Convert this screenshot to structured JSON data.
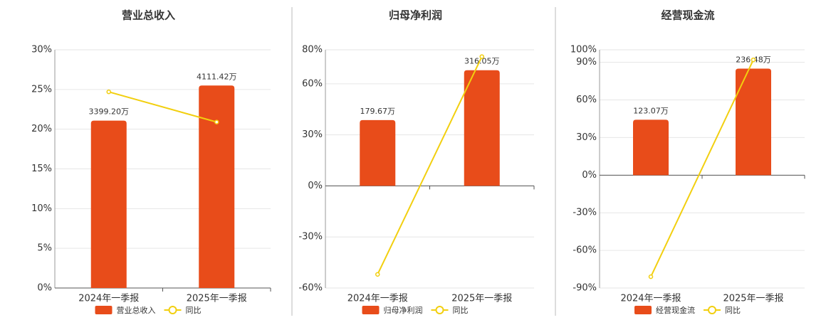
{
  "chart_data": [
    {
      "type": "bar",
      "title": "营业总收入",
      "categories": [
        "2024年一季报",
        "2025年一季报"
      ],
      "series": [
        {
          "name": "营业总收入",
          "type": "bar",
          "color": "#e84c1a",
          "values": [
            3399.2,
            4111.42
          ],
          "value_labels": [
            "3399.20万",
            "4111.42万"
          ]
        },
        {
          "name": "同比",
          "type": "line",
          "color": "#f2cf0f",
          "values": [
            24.7,
            20.9
          ]
        }
      ],
      "ylim": [
        0,
        30
      ],
      "yticks": [
        {
          "value": 0,
          "label": "0%"
        },
        {
          "value": 5,
          "label": "5%"
        },
        {
          "value": 10,
          "label": "10%"
        },
        {
          "value": 15,
          "label": "15%"
        },
        {
          "value": 20,
          "label": "20%"
        },
        {
          "value": 25,
          "label": "25%"
        },
        {
          "value": 30,
          "label": "30%"
        }
      ],
      "grid": true
    },
    {
      "type": "bar",
      "title": "归母净利润",
      "categories": [
        "2024年一季报",
        "2025年一季报"
      ],
      "series": [
        {
          "name": "归母净利润",
          "type": "bar",
          "color": "#e84c1a",
          "values": [
            179.67,
            316.05
          ],
          "value_labels": [
            "179.67万",
            "316.05万"
          ]
        },
        {
          "name": "同比",
          "type": "line",
          "color": "#f2cf0f",
          "values": [
            -52,
            76
          ]
        }
      ],
      "ylim": [
        -60,
        80
      ],
      "yticks": [
        {
          "value": -60,
          "label": "-60%"
        },
        {
          "value": -30,
          "label": "-30%"
        },
        {
          "value": 0,
          "label": "0%"
        },
        {
          "value": 30,
          "label": "30%"
        },
        {
          "value": 60,
          "label": "60%"
        },
        {
          "value": 80,
          "label": "80%"
        }
      ],
      "grid": true
    },
    {
      "type": "bar",
      "title": "经营现金流",
      "categories": [
        "2024年一季报",
        "2025年一季报"
      ],
      "series": [
        {
          "name": "经营现金流",
          "type": "bar",
          "color": "#e84c1a",
          "values": [
            123.07,
            236.48
          ],
          "value_labels": [
            "123.07万",
            "236.48万"
          ]
        },
        {
          "name": "同比",
          "type": "line",
          "color": "#f2cf0f",
          "values": [
            -81,
            92
          ]
        }
      ],
      "ylim": [
        -90,
        100
      ],
      "yticks": [
        {
          "value": -90,
          "label": "-90%"
        },
        {
          "value": -60,
          "label": "-60%"
        },
        {
          "value": -30,
          "label": "-30%"
        },
        {
          "value": 0,
          "label": "0%"
        },
        {
          "value": 30,
          "label": "30%"
        },
        {
          "value": 60,
          "label": "60%"
        },
        {
          "value": 90,
          "label": "90%"
        },
        {
          "value": 100,
          "label": "100%"
        }
      ],
      "grid": true
    }
  ]
}
